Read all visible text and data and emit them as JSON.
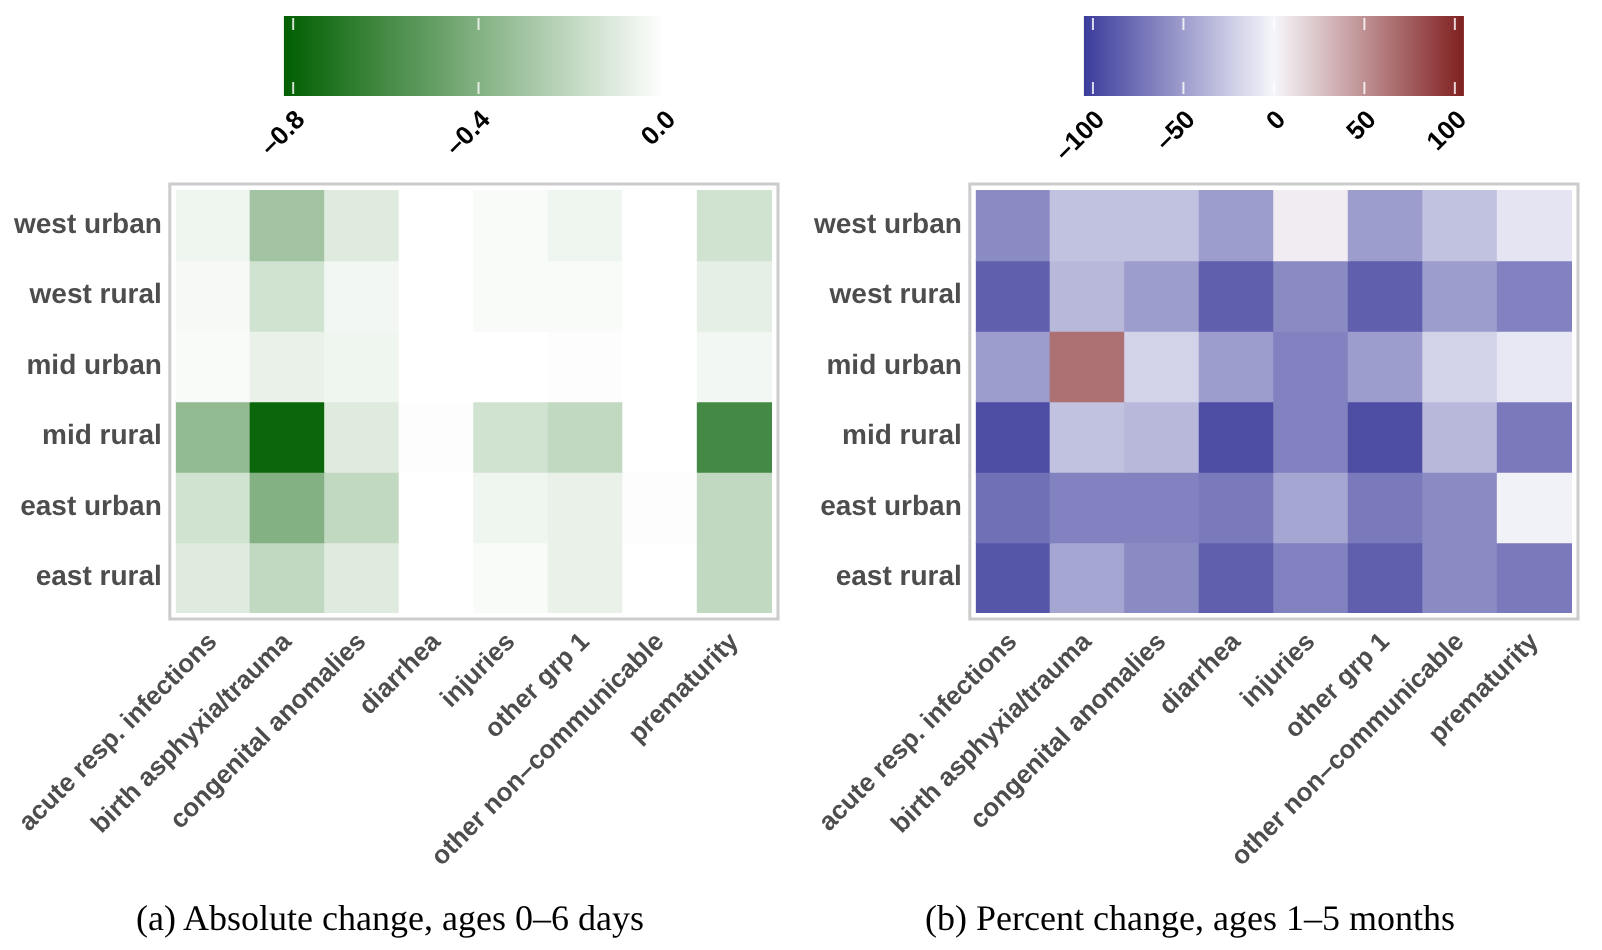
{
  "chart_data": [
    {
      "type": "heatmap",
      "title": "(a) Absolute change, ages 0–6 days",
      "categories": [
        "acute resp. infections",
        "birth asphyxia/trauma",
        "congenital anomalies",
        "diarrhea",
        "injuries",
        "other grp 1",
        "other non–communicable",
        "prematurity"
      ],
      "y_categories": [
        "west urban",
        "west rural",
        "mid urban",
        "mid rural",
        "east urban",
        "east rural"
      ],
      "cells": [
        [
          -0.05,
          -0.3,
          -0.1,
          0,
          -0.02,
          -0.05,
          0,
          -0.15
        ],
        [
          -0.03,
          -0.15,
          -0.04,
          0,
          -0.02,
          -0.02,
          0,
          -0.08
        ],
        [
          -0.02,
          -0.07,
          -0.05,
          0,
          0,
          -0.01,
          0,
          -0.04
        ],
        [
          -0.35,
          -0.78,
          -0.1,
          -0.01,
          -0.15,
          -0.2,
          0,
          -0.6
        ],
        [
          -0.15,
          -0.4,
          -0.2,
          0,
          -0.05,
          -0.07,
          -0.01,
          -0.2
        ],
        [
          -0.1,
          -0.2,
          -0.1,
          0,
          -0.02,
          -0.07,
          0,
          -0.2
        ]
      ],
      "clim": [
        -0.82,
        0
      ],
      "cticks": [
        {
          "value": -0.8,
          "label": "–0.8"
        },
        {
          "value": -0.4,
          "label": "–0.4"
        },
        {
          "value": 0,
          "label": "0.0"
        }
      ]
    },
    {
      "type": "heatmap",
      "title": "(b) Percent change, ages 1–5 months",
      "categories": [
        "acute resp. infections",
        "birth asphyxia/trauma",
        "congenital anomalies",
        "diarrhea",
        "injuries",
        "other grp 1",
        "other non–communicable",
        "prematurity"
      ],
      "y_categories": [
        "west urban",
        "west rural",
        "mid urban",
        "mid rural",
        "east urban",
        "east rural"
      ],
      "cells": [
        [
          -60,
          -30,
          -30,
          -50,
          5,
          -50,
          -30,
          -10
        ],
        [
          -85,
          -35,
          -50,
          -85,
          -60,
          -85,
          -50,
          -65
        ],
        [
          -50,
          65,
          -20,
          -50,
          -65,
          -50,
          -20,
          -8
        ],
        [
          -95,
          -30,
          -35,
          -95,
          -65,
          -95,
          -35,
          -70
        ],
        [
          -75,
          -65,
          -65,
          -70,
          -45,
          -70,
          -60,
          -3
        ],
        [
          -90,
          -45,
          -60,
          -85,
          -65,
          -85,
          -60,
          -70
        ]
      ],
      "clim": [
        -105,
        105
      ],
      "cticks": [
        {
          "value": -100,
          "label": "–100"
        },
        {
          "value": -50,
          "label": "–50"
        },
        0,
        50,
        100
      ]
    }
  ]
}
